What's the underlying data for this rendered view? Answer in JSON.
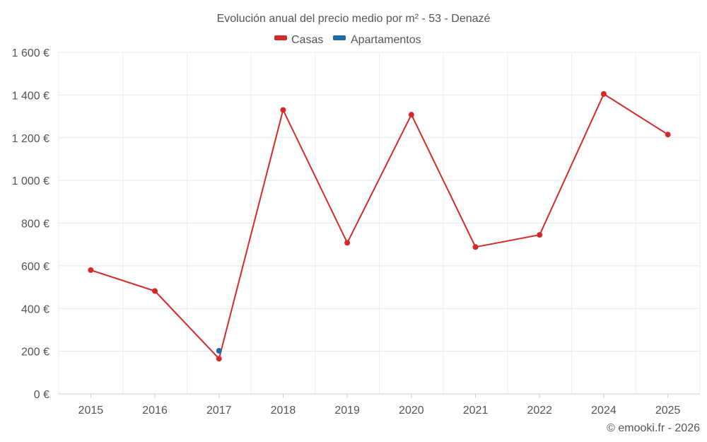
{
  "chart_data": {
    "type": "line",
    "title": "Evolución anual del precio medio por m² - 53 - Denazé",
    "categories": [
      "2015",
      "2016",
      "2017",
      "2018",
      "2019",
      "2020",
      "2021",
      "2022",
      "2024",
      "2025"
    ],
    "series": [
      {
        "name": "Casas",
        "color": "#d42a2a",
        "values": [
          580,
          482,
          165,
          1330,
          708,
          1308,
          688,
          745,
          1405,
          1215
        ]
      },
      {
        "name": "Apartamentos",
        "color": "#1f6aa5",
        "values": [
          null,
          null,
          202,
          null,
          null,
          null,
          null,
          null,
          null,
          null
        ]
      }
    ],
    "y_ticks": [
      "0 €",
      "200 €",
      "400 €",
      "600 €",
      "800 €",
      "1 000 €",
      "1 200 €",
      "1 400 €",
      "1 600 €"
    ],
    "ylim": [
      0,
      1600
    ],
    "grid": true,
    "legend_position": "top-center"
  },
  "credit": "© emooki.fr - 2026"
}
